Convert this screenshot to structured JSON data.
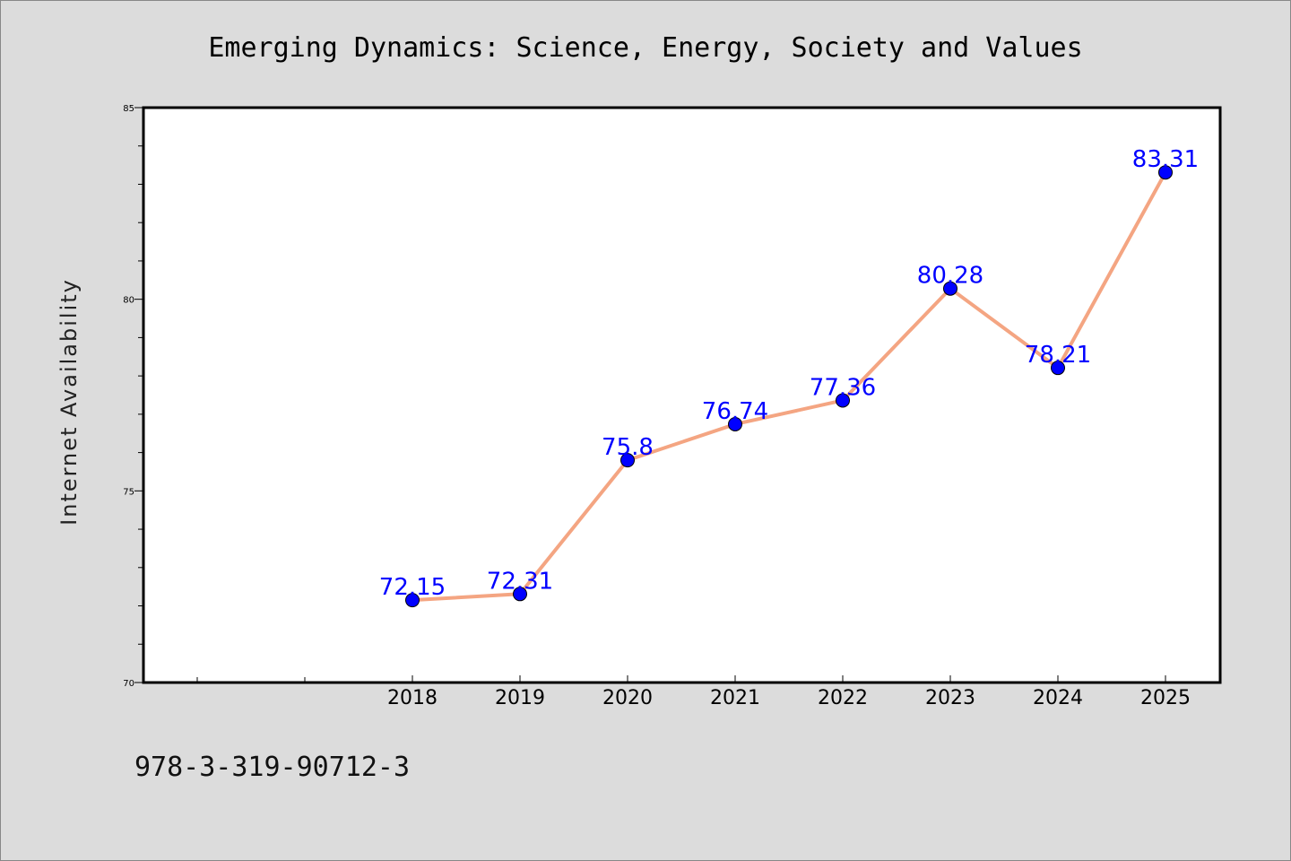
{
  "chart_data": {
    "type": "line",
    "title": "Emerging Dynamics: Science, Energy, Society and Values",
    "ylabel": "Internet Availability",
    "xlabel": "",
    "categories": [
      "2018",
      "2019",
      "2020",
      "2021",
      "2022",
      "2023",
      "2024",
      "2025"
    ],
    "series": [
      {
        "values": [
          72.15,
          72.31,
          75.8,
          76.74,
          77.36,
          80.28,
          78.21,
          83.31
        ],
        "labels": [
          "72.15",
          "72.31",
          "75.8",
          "76.74",
          "77.36",
          "80.28",
          "78.21",
          "83.31"
        ],
        "line_color": "#f4a582",
        "marker_color": "#0000ff",
        "label_color": "#0000ff"
      }
    ],
    "ylim": [
      70,
      85
    ],
    "yticks": [
      70,
      75,
      80,
      85
    ],
    "ytick_labels": [
      "70",
      "75",
      "80",
      "85"
    ],
    "grid": false,
    "legend": "none"
  },
  "footer": {
    "isbn": "978-3-319-90712-3"
  }
}
